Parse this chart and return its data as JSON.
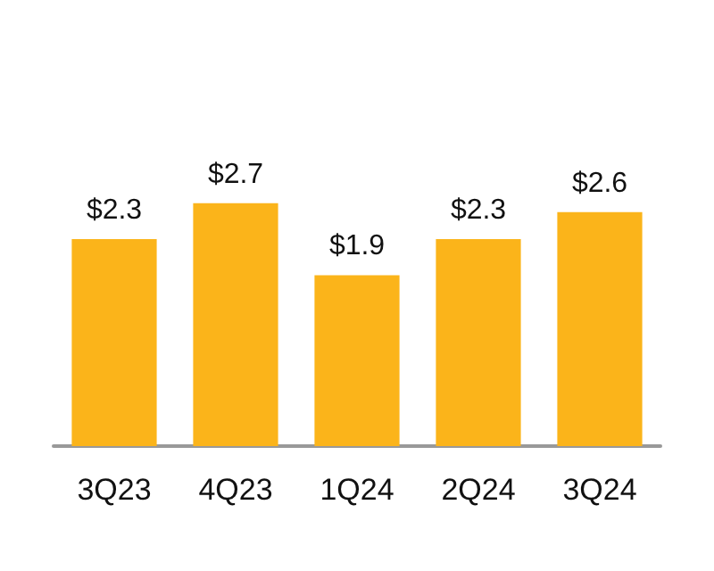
{
  "chart_data": {
    "type": "bar",
    "categories": [
      "3Q23",
      "4Q23",
      "1Q24",
      "2Q24",
      "3Q24"
    ],
    "values": [
      2.3,
      2.7,
      1.9,
      2.3,
      2.6
    ],
    "value_labels": [
      "$2.3",
      "$2.7",
      "$1.9",
      "$2.3",
      "$2.6"
    ],
    "color": "#fbb41a"
  }
}
